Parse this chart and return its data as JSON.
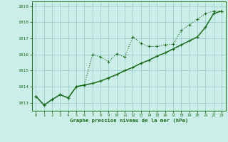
{
  "title": "Graphe pression niveau de la mer (hPa)",
  "background_color": "#cceee8",
  "grid_color": "#99cccc",
  "line_color": "#1a6b1a",
  "ylim": [
    1012.5,
    1019.3
  ],
  "xlim": [
    -0.5,
    23.5
  ],
  "yticks": [
    1013,
    1014,
    1015,
    1016,
    1017,
    1018,
    1019
  ],
  "xticks": [
    0,
    1,
    2,
    3,
    4,
    5,
    6,
    7,
    8,
    9,
    10,
    11,
    12,
    13,
    14,
    15,
    16,
    17,
    18,
    19,
    20,
    21,
    22,
    23
  ],
  "series1_x": [
    0,
    1,
    2,
    3,
    4,
    5,
    6,
    7,
    8,
    9,
    10,
    11,
    12,
    13,
    14,
    15,
    16,
    17,
    18,
    19,
    20,
    21,
    22,
    23
  ],
  "series1_y": [
    1013.4,
    1012.85,
    1013.2,
    1013.5,
    1013.3,
    1014.0,
    1014.1,
    1016.0,
    1015.85,
    1015.55,
    1016.05,
    1015.85,
    1017.1,
    1016.7,
    1016.5,
    1016.5,
    1016.6,
    1016.65,
    1017.5,
    1017.85,
    1018.2,
    1018.55,
    1018.7,
    1018.7
  ],
  "series2_x": [
    0,
    1,
    2,
    3,
    4,
    5,
    6,
    7,
    8,
    9,
    10,
    11,
    12,
    13,
    14,
    15,
    16,
    17,
    18,
    19,
    20,
    21,
    22,
    23
  ],
  "series2_y": [
    1013.4,
    1012.85,
    1013.2,
    1013.5,
    1013.3,
    1014.0,
    1014.1,
    1014.2,
    1014.35,
    1014.55,
    1014.75,
    1015.0,
    1015.2,
    1015.45,
    1015.65,
    1015.9,
    1016.1,
    1016.35,
    1016.6,
    1016.85,
    1017.1,
    1017.7,
    1018.55,
    1018.7
  ]
}
